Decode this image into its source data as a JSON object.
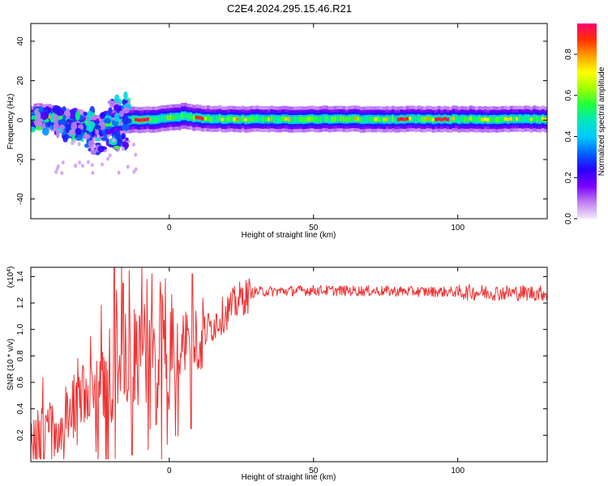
{
  "figure_title": "C2E4.2024.295.15.46.R21",
  "chart_data": [
    {
      "type": "heatmap",
      "title": "C2E4.2024.295.15.46.R21",
      "xlabel": "Height of straight line (km)",
      "ylabel": "Frequency (Hz)",
      "xlim": [
        -48,
        131
      ],
      "ylim": [
        -50,
        49
      ],
      "x_ticks": [
        0,
        50,
        100
      ],
      "x_tick_labels": [
        "0",
        "50",
        "100"
      ],
      "y_ticks": [
        -40,
        -20,
        0,
        20,
        40
      ],
      "y_tick_labels": [
        "-40",
        "-20",
        "0",
        "20",
        "40"
      ],
      "grid": false,
      "colorbar": {
        "label": "Normalized spectral amplitude",
        "range": [
          0.0,
          0.95
        ],
        "ticks": [
          0.0,
          0.2,
          0.4,
          0.6,
          0.8
        ],
        "tick_labels": [
          "0.0",
          "0.2",
          "0.4",
          "0.6",
          "0.8"
        ],
        "colors": [
          "#f4eafa",
          "#c080f0",
          "#7a00ff",
          "#2a00ff",
          "#0060ff",
          "#00c8ff",
          "#00e8c0",
          "#20ff40",
          "#a0ff00",
          "#ffff00",
          "#ffa000",
          "#ff3000",
          "#ff0070"
        ]
      },
      "band": {
        "center_freq_hz": [
          {
            "x": -47,
            "f": 2
          },
          {
            "x": -40,
            "f": 1
          },
          {
            "x": -35,
            "f": -1
          },
          {
            "x": -30,
            "f": -3
          },
          {
            "x": -25,
            "f": -4
          },
          {
            "x": -20,
            "f": -1
          },
          {
            "x": -15,
            "f": 0
          },
          {
            "x": -10,
            "f": 0
          },
          {
            "x": -5,
            "f": 0.5
          },
          {
            "x": 5,
            "f": 2
          },
          {
            "x": 10,
            "f": 1
          },
          {
            "x": 20,
            "f": 0.5
          },
          {
            "x": 131,
            "f": 0.5
          }
        ],
        "half_width_hz": 3,
        "peak_segments_km": [
          [
            -12,
            -8
          ],
          [
            9,
            11
          ],
          [
            79,
            82
          ],
          [
            92,
            96
          ]
        ]
      },
      "scatter_region_km": [
        -48,
        -18
      ]
    },
    {
      "type": "line",
      "title": "",
      "xlabel": "Height of straight line (km)",
      "ylabel": "SNR (10 * v/v)",
      "y_multiplier_label": "(x10",
      "y_multiplier_exp": "4",
      "y_multiplier_close": ")",
      "xlim": [
        -48,
        131
      ],
      "ylim": [
        0.0,
        1.47
      ],
      "x_ticks": [
        0,
        50,
        100
      ],
      "x_tick_labels": [
        "0",
        "50",
        "100"
      ],
      "y_ticks": [
        0.2,
        0.4,
        0.6,
        0.8,
        1.0,
        1.2,
        1.4
      ],
      "y_tick_labels": [
        "0.2",
        "0.4",
        "0.6",
        "0.8",
        "1.0",
        "1.2",
        "1.4"
      ],
      "grid": false,
      "series": [
        {
          "name": "SNR",
          "color": "#ee3333",
          "envelope": [
            {
              "x": -48,
              "y": 0.15
            },
            {
              "x": -40,
              "y": 0.25
            },
            {
              "x": -30,
              "y": 0.45
            },
            {
              "x": -20,
              "y": 0.7
            },
            {
              "x": -10,
              "y": 0.85
            },
            {
              "x": 0,
              "y": 0.9
            },
            {
              "x": 10,
              "y": 0.95
            },
            {
              "x": 15,
              "y": 1.05
            },
            {
              "x": 20,
              "y": 1.15
            },
            {
              "x": 25,
              "y": 1.25
            },
            {
              "x": 30,
              "y": 1.29
            },
            {
              "x": 50,
              "y": 1.3
            },
            {
              "x": 131,
              "y": 1.28
            }
          ],
          "spikes": [
            {
              "x": -19,
              "y": 1.47
            },
            {
              "x": -16,
              "y": 1.35
            },
            {
              "x": -6,
              "y": 1.42
            },
            {
              "x": 8,
              "y": 1.42
            },
            {
              "x": 7.5,
              "y": 0.25
            },
            {
              "x": -4.5,
              "y": 0.28
            },
            {
              "x": -13,
              "y": 0.05
            }
          ]
        }
      ]
    }
  ]
}
